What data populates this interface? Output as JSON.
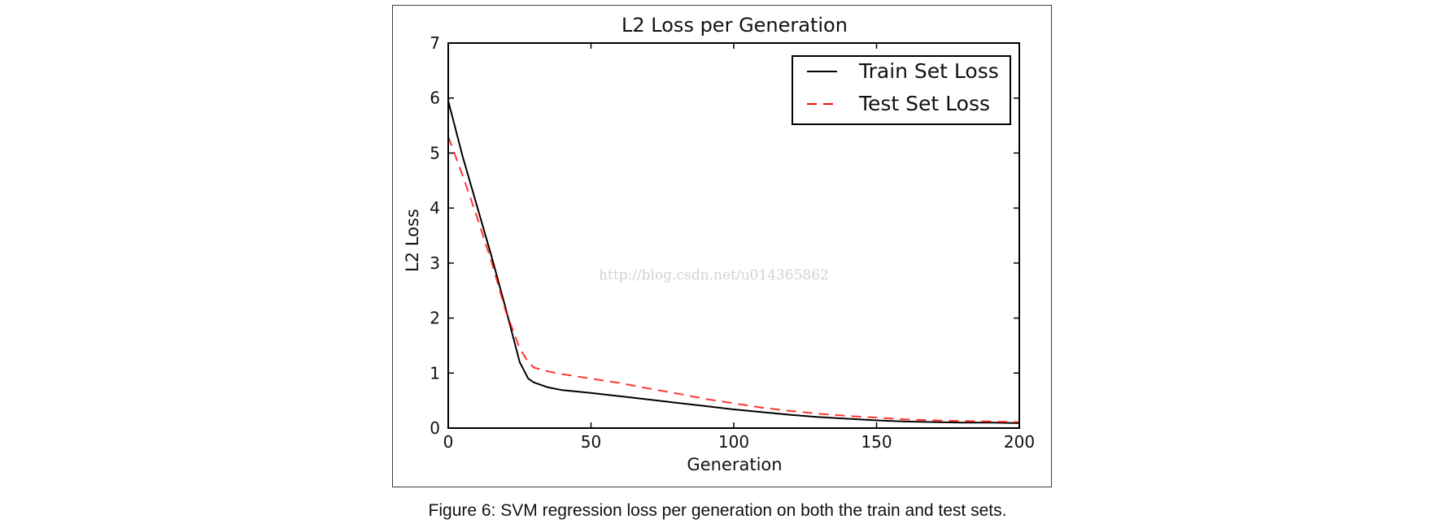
{
  "watermark": "http://blog.csdn.net/u014365862",
  "caption": "Figure 6: SVM regression loss per generation on both the train and test sets.",
  "chart_data": {
    "type": "line",
    "title": "L2 Loss per Generation",
    "xlabel": "Generation",
    "ylabel": "L2 Loss",
    "xlim": [
      0,
      200
    ],
    "ylim": [
      0,
      7
    ],
    "xticks": [
      0,
      50,
      100,
      150,
      200
    ],
    "yticks": [
      0,
      1,
      2,
      3,
      4,
      5,
      6,
      7
    ],
    "grid": false,
    "legend_position": "top-right",
    "series": [
      {
        "name": "Train Set Loss",
        "color": "#000000",
        "style": "solid",
        "x": [
          0,
          5,
          10,
          15,
          20,
          25,
          28,
          30,
          35,
          40,
          50,
          60,
          70,
          80,
          90,
          100,
          110,
          120,
          130,
          140,
          150,
          160,
          170,
          180,
          190,
          200
        ],
        "y": [
          5.95,
          4.95,
          4.05,
          3.15,
          2.2,
          1.2,
          0.9,
          0.83,
          0.74,
          0.69,
          0.64,
          0.58,
          0.52,
          0.46,
          0.4,
          0.34,
          0.29,
          0.24,
          0.2,
          0.17,
          0.14,
          0.12,
          0.11,
          0.1,
          0.1,
          0.09
        ]
      },
      {
        "name": "Test Set Loss",
        "color": "#ff0000",
        "style": "dashed",
        "x": [
          0,
          5,
          10,
          15,
          20,
          25,
          28,
          30,
          35,
          40,
          50,
          60,
          70,
          80,
          90,
          100,
          110,
          120,
          130,
          140,
          150,
          160,
          170,
          180,
          190,
          200
        ],
        "y": [
          5.3,
          4.6,
          3.85,
          3.05,
          2.15,
          1.45,
          1.2,
          1.1,
          1.03,
          0.98,
          0.9,
          0.82,
          0.72,
          0.63,
          0.53,
          0.45,
          0.37,
          0.31,
          0.26,
          0.22,
          0.19,
          0.16,
          0.14,
          0.13,
          0.12,
          0.11
        ]
      }
    ]
  }
}
